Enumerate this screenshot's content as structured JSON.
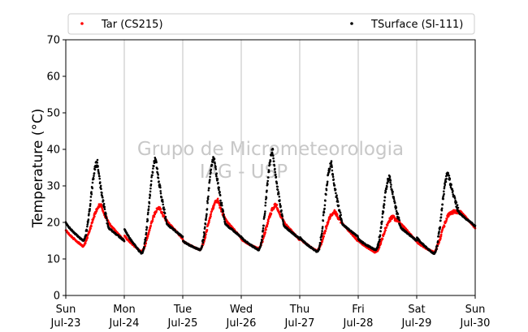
{
  "chart_data": {
    "type": "scatter",
    "xlabel": "",
    "ylabel": "Temperature (°C)",
    "ylim": [
      0,
      70
    ],
    "xlim": [
      "2023-07-23 00:00",
      "2023-07-30 00:00"
    ],
    "yticks": [
      "0",
      "10",
      "20",
      "30",
      "40",
      "50",
      "60",
      "70"
    ],
    "xticks": [
      {
        "day": "Sun",
        "date": "Jul-23"
      },
      {
        "day": "Mon",
        "date": "Jul-24"
      },
      {
        "day": "Tue",
        "date": "Jul-25"
      },
      {
        "day": "Wed",
        "date": "Jul-26"
      },
      {
        "day": "Thu",
        "date": "Jul-27"
      },
      {
        "day": "Fri",
        "date": "Jul-28"
      },
      {
        "day": "Sat",
        "date": "Jul-29"
      },
      {
        "day": "Sun",
        "date": "Jul-30"
      }
    ],
    "grid": "vertical",
    "legend_position": "top",
    "watermark": [
      "Grupo de Micrometeorologia",
      "IAG - USP"
    ],
    "series": [
      {
        "name": "Tar (CS215)",
        "color": "#ff0000",
        "marker": "dot",
        "daily": [
          {
            "date": "Jul-23",
            "min": 13.5,
            "max": 24.8
          },
          {
            "date": "Jul-24",
            "min": 12.0,
            "max": 24.0
          },
          {
            "date": "Jul-25",
            "min": 12.5,
            "max": 26.0
          },
          {
            "date": "Jul-26",
            "min": 12.8,
            "max": 24.8
          },
          {
            "date": "Jul-27",
            "min": 12.2,
            "max": 23.0
          },
          {
            "date": "Jul-28",
            "min": 11.8,
            "max": 21.5
          },
          {
            "date": "Jul-29",
            "min": 11.8,
            "max": 22.8
          }
        ],
        "end_value": 15.5
      },
      {
        "name": "TSurface (SI-111)",
        "color": "#000000",
        "marker": "dot",
        "daily": [
          {
            "date": "Jul-23",
            "min": 15.0,
            "max": 36.5
          },
          {
            "date": "Jul-24",
            "min": 11.5,
            "max": 37.5
          },
          {
            "date": "Jul-25",
            "min": 12.5,
            "max": 38.0
          },
          {
            "date": "Jul-26",
            "min": 12.5,
            "max": 39.5
          },
          {
            "date": "Jul-27",
            "min": 12.0,
            "max": 36.0
          },
          {
            "date": "Jul-28",
            "min": 12.5,
            "max": 32.5
          },
          {
            "date": "Jul-29",
            "min": 11.5,
            "max": 33.5
          }
        ],
        "end_value": 15.5
      }
    ]
  }
}
